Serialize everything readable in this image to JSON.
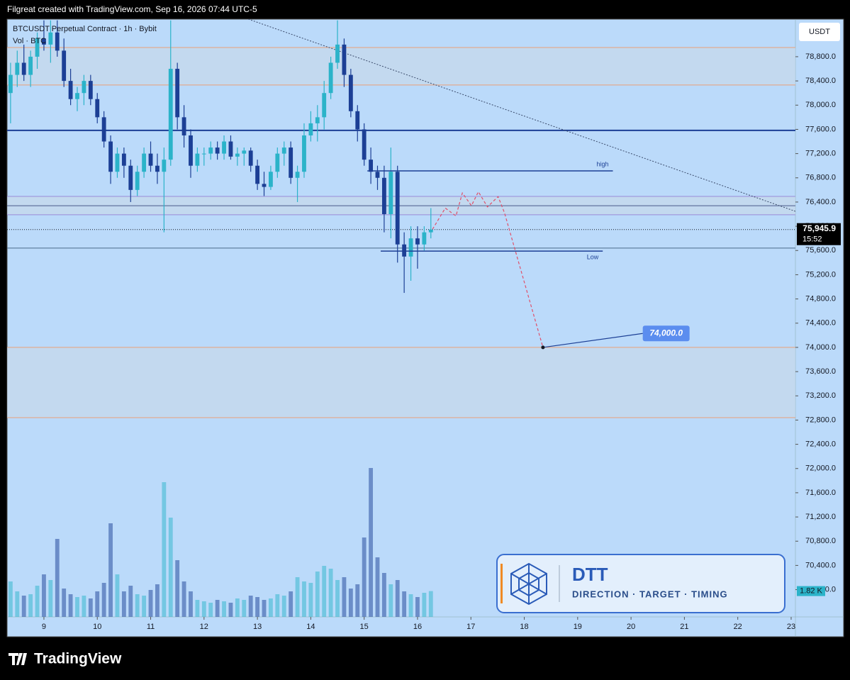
{
  "header": {
    "attribution": "Filgreat created with TradingView.com, Sep 16, 2026 07:44 UTC-5"
  },
  "footer": {
    "brand": "TradingView"
  },
  "logo_box": {
    "title": "DTT",
    "subtitle": "DIRECTION · TARGET · TIMING"
  },
  "chart_data": {
    "type": "candlestick",
    "title": "BTCUSDT Perpetual Contract · 1h · Bybit",
    "currency": "USDT",
    "up_color": "#2bb3c9",
    "down_color": "#1c3f95",
    "xlim": [
      8.31,
      23.08
    ],
    "xticks": [
      9,
      10,
      11,
      12,
      13,
      14,
      15,
      16,
      17,
      18,
      19,
      20,
      21,
      22,
      23
    ],
    "ylim": [
      69550,
      79420
    ],
    "yticks": [
      {
        "value": 70000,
        "label": "70,000.0"
      },
      {
        "value": 70400,
        "label": "70,400.0"
      },
      {
        "value": 70800,
        "label": "70,800.0"
      },
      {
        "value": 71200,
        "label": "71,200.0"
      },
      {
        "value": 71600,
        "label": "71,600.0"
      },
      {
        "value": 72000,
        "label": "72,000.0"
      },
      {
        "value": 72400,
        "label": "72,400.0"
      },
      {
        "value": 72800,
        "label": "72,800.0"
      },
      {
        "value": 73200,
        "label": "73,200.0"
      },
      {
        "value": 73600,
        "label": "73,600.0"
      },
      {
        "value": 74000,
        "label": "74,000.0"
      },
      {
        "value": 74400,
        "label": "74,400.0"
      },
      {
        "value": 74800,
        "label": "74,800.0"
      },
      {
        "value": 75200,
        "label": "75,200.0"
      },
      {
        "value": 75600,
        "label": "75,600.0"
      },
      {
        "value": 76000,
        "label": "76,000.0"
      },
      {
        "value": 76400,
        "label": "76,400.0"
      },
      {
        "value": 76800,
        "label": "76,800.0"
      },
      {
        "value": 77200,
        "label": "77,200.0"
      },
      {
        "value": 77600,
        "label": "77,600.0"
      },
      {
        "value": 78000,
        "label": "78,000.0"
      },
      {
        "value": 78400,
        "label": "78,400.0"
      },
      {
        "value": 78800,
        "label": "78,800.0"
      }
    ],
    "candles": {
      "x": [
        8.375,
        8.5,
        8.625,
        8.75,
        8.875,
        9.0,
        9.125,
        9.25,
        9.375,
        9.5,
        9.625,
        9.75,
        9.875,
        10.0,
        10.125,
        10.25,
        10.375,
        10.5,
        10.625,
        10.75,
        10.875,
        11.0,
        11.125,
        11.25,
        11.375,
        11.5,
        11.625,
        11.75,
        11.875,
        12.0,
        12.125,
        12.25,
        12.375,
        12.5,
        12.625,
        12.75,
        12.875,
        13.0,
        13.125,
        13.25,
        13.375,
        13.5,
        13.625,
        13.75,
        13.875,
        14.0,
        14.125,
        14.25,
        14.375,
        14.5,
        14.625,
        14.75,
        14.875,
        15.0,
        15.125,
        15.25,
        15.375,
        15.5,
        15.625,
        15.75,
        15.875,
        16.0,
        16.125,
        16.25
      ],
      "open": [
        78200,
        78500,
        78700,
        78500,
        78800,
        79100,
        79000,
        79200,
        78900,
        78400,
        78100,
        78200,
        78400,
        78100,
        77800,
        77400,
        76900,
        77200,
        77000,
        76600,
        76900,
        77200,
        77000,
        76900,
        77100,
        78600,
        77800,
        77500,
        77000,
        77200,
        77200,
        77300,
        77200,
        77400,
        77150,
        77200,
        77250,
        77000,
        76700,
        76650,
        76900,
        77200,
        77300,
        76800,
        76900,
        77500,
        77700,
        77800,
        78200,
        78700,
        79000,
        78500,
        77900,
        77600,
        77100,
        76900,
        76800,
        76200,
        76900,
        75700,
        75500,
        75800,
        75700,
        75900
      ],
      "high": [
        78700,
        78900,
        79000,
        78900,
        79200,
        79400,
        79400,
        79400,
        79100,
        78600,
        78300,
        78500,
        78500,
        78200,
        77900,
        77500,
        77300,
        77300,
        77100,
        77000,
        77300,
        77400,
        77200,
        77300,
        79400,
        78700,
        78000,
        77600,
        77300,
        77300,
        77400,
        77400,
        77500,
        77500,
        77300,
        77300,
        77300,
        77100,
        76900,
        77000,
        77300,
        77400,
        77400,
        77000,
        77700,
        77900,
        78000,
        78400,
        78800,
        79400,
        79100,
        78600,
        78000,
        77700,
        77300,
        77000,
        77000,
        77300,
        77000,
        75900,
        76000,
        76000,
        76000,
        76300
      ],
      "low": [
        77700,
        78300,
        78400,
        78300,
        78600,
        78900,
        78700,
        78800,
        78300,
        78000,
        77900,
        78000,
        78000,
        77700,
        77300,
        76700,
        76800,
        76800,
        76400,
        76500,
        76800,
        76900,
        76700,
        75900,
        77000,
        77600,
        77300,
        76800,
        76900,
        77000,
        77100,
        77100,
        77100,
        77100,
        77000,
        77000,
        76900,
        76600,
        76500,
        76600,
        76800,
        77000,
        76700,
        76400,
        76800,
        77400,
        77400,
        77600,
        78100,
        78600,
        78300,
        77800,
        77400,
        77000,
        76700,
        76600,
        75900,
        75800,
        75400,
        74900,
        75100,
        75300,
        75600,
        75800
      ],
      "close": [
        78500,
        78700,
        78500,
        78800,
        79100,
        79000,
        79200,
        78900,
        78400,
        78100,
        78200,
        78400,
        78100,
        77800,
        77400,
        76900,
        77200,
        77000,
        76600,
        76900,
        77200,
        77000,
        76900,
        77100,
        78600,
        77800,
        77500,
        77000,
        77200,
        77200,
        77300,
        77200,
        77400,
        77150,
        77200,
        77250,
        77000,
        76700,
        76650,
        76900,
        77200,
        77300,
        76800,
        76900,
        77500,
        77700,
        77800,
        78200,
        78700,
        79000,
        78500,
        77900,
        77600,
        77100,
        76900,
        76800,
        76200,
        76900,
        75700,
        75500,
        75800,
        75700,
        75900,
        75945.9
      ]
    },
    "volume": {
      "name": "Vol · BTC",
      "ylim": [
        0,
        12
      ],
      "last_label": "1.82 K",
      "values": [
        2.5,
        1.8,
        1.5,
        1.6,
        2.2,
        3,
        2.6,
        5.5,
        2,
        1.6,
        1.4,
        1.5,
        1.3,
        1.8,
        2.4,
        6.6,
        3,
        1.8,
        2.2,
        1.6,
        1.5,
        1.9,
        2.3,
        9.5,
        7,
        4,
        2.5,
        1.8,
        1.2,
        1.1,
        1,
        1.2,
        1.1,
        1,
        1.3,
        1.2,
        1.5,
        1.4,
        1.2,
        1.3,
        1.6,
        1.5,
        1.8,
        2.8,
        2.5,
        2.4,
        3.2,
        3.6,
        3.4,
        2.6,
        2.8,
        2,
        2.3,
        5.6,
        10.5,
        4.2,
        3.1,
        2.3,
        2.6,
        1.8,
        1.6,
        1.4,
        1.7,
        1.82
      ]
    },
    "zones": [
      {
        "range": [
          78332,
          78952
        ],
        "color": "#e8a07a"
      },
      {
        "range": [
          76190,
          76493
        ],
        "color": "#9a8ad8"
      },
      {
        "range": [
          72840,
          74000
        ],
        "color": "#e8a07a"
      }
    ],
    "levels": [
      {
        "value": 77583,
        "color": "#1c3f95",
        "width": 2
      },
      {
        "value": 76340,
        "color": "#4a5a8a",
        "width": 1
      },
      {
        "value": 75640,
        "color": "#4a6a8a",
        "width": 1
      }
    ],
    "trend_line": {
      "x": [
        12.83,
        23.08
      ],
      "values": [
        79420,
        76247
      ],
      "color": "#3a4a6a"
    },
    "marked_levels": [
      {
        "name": "high",
        "value": 76915,
        "x": [
          15.06,
          19.66
        ]
      },
      {
        "name": "Low",
        "value": 75590,
        "x": [
          15.31,
          19.47
        ]
      }
    ],
    "projection": {
      "color": "#e0506a",
      "x": [
        16.28,
        16.52,
        16.72,
        16.84,
        17.01,
        17.14,
        17.31,
        17.51,
        17.63,
        18.35
      ],
      "values": [
        75950,
        76300,
        76170,
        76550,
        76340,
        76570,
        76320,
        76490,
        76220,
        74000
      ]
    },
    "target": {
      "value": 74000,
      "label": "74,000.0",
      "x": [
        18.35,
        20.22
      ],
      "label_value": 74230
    },
    "last_price": {
      "value": 75945.9,
      "label": "75,945.9",
      "countdown": "15:52"
    }
  }
}
